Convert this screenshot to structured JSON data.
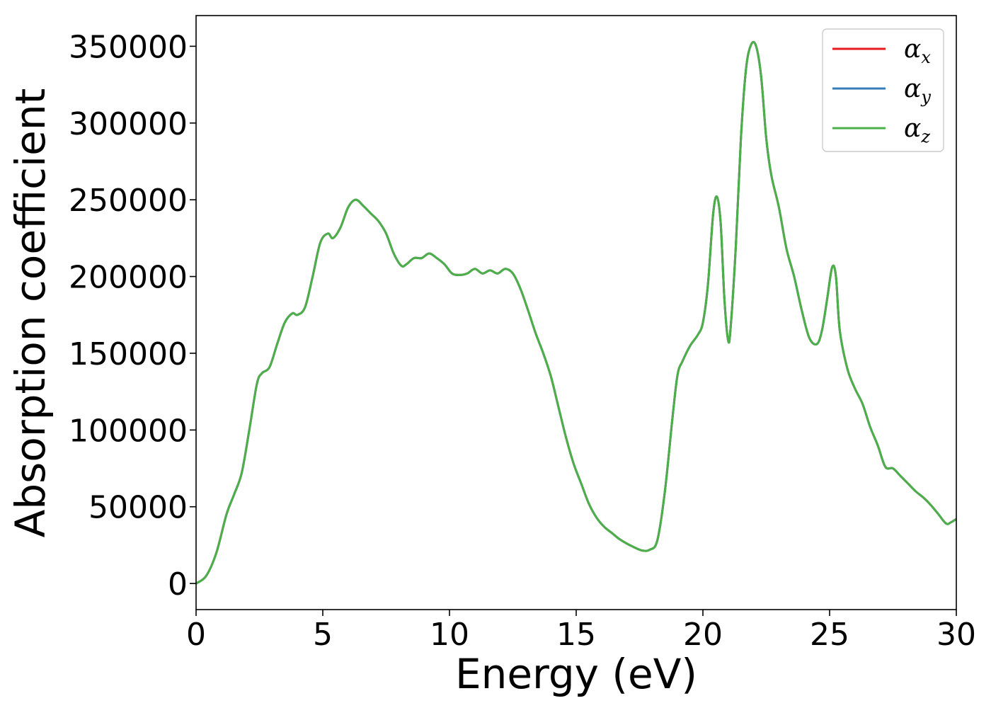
{
  "chart_data": {
    "type": "line",
    "title": "",
    "xlabel": "Energy (eV)",
    "ylabel": "Absorption coefficient",
    "xlim": [
      0,
      30
    ],
    "ylim": [
      -17000,
      370000
    ],
    "xticks": [
      0,
      5,
      10,
      15,
      20,
      25,
      30
    ],
    "xtick_labels": [
      "0",
      "5",
      "10",
      "15",
      "20",
      "25",
      "30"
    ],
    "yticks": [
      0,
      50000,
      100000,
      150000,
      200000,
      250000,
      300000,
      350000
    ],
    "ytick_labels": [
      "0",
      "50000",
      "100000",
      "150000",
      "200000",
      "250000",
      "300000",
      "350000"
    ],
    "grid": false,
    "legend_position": "top-right",
    "x": [
      0,
      0.4,
      0.8,
      1.2,
      1.5,
      1.8,
      2.1,
      2.4,
      2.6,
      2.9,
      3.2,
      3.5,
      3.8,
      4.0,
      4.3,
      4.6,
      4.9,
      5.2,
      5.4,
      5.7,
      6.0,
      6.3,
      6.6,
      6.9,
      7.2,
      7.5,
      7.8,
      8.1,
      8.3,
      8.6,
      8.9,
      9.2,
      9.5,
      9.8,
      10.1,
      10.4,
      10.7,
      11.0,
      11.3,
      11.6,
      11.9,
      12.2,
      12.5,
      12.8,
      13.1,
      13.4,
      13.7,
      14.0,
      14.3,
      14.6,
      14.9,
      15.2,
      15.5,
      15.8,
      16.1,
      16.4,
      16.7,
      17.0,
      17.3,
      17.6,
      17.9,
      18.2,
      18.5,
      18.8,
      19.0,
      19.2,
      19.5,
      19.8,
      20.0,
      20.2,
      20.4,
      20.55,
      20.7,
      20.85,
      21.0,
      21.1,
      21.3,
      21.5,
      21.7,
      21.9,
      22.1,
      22.3,
      22.5,
      22.7,
      23.0,
      23.3,
      23.6,
      23.9,
      24.2,
      24.5,
      24.7,
      24.9,
      25.1,
      25.25,
      25.4,
      25.7,
      26.0,
      26.3,
      26.6,
      26.9,
      27.2,
      27.5,
      27.8,
      28.1,
      28.4,
      28.7,
      29.0,
      29.3,
      29.6,
      29.8,
      30.0
    ],
    "series": [
      {
        "name": "α_x",
        "color": "#e41a1c",
        "values": [
          0,
          5000,
          20000,
          45000,
          58000,
          72000,
          100000,
          130000,
          137000,
          141000,
          156000,
          170000,
          176000,
          175000,
          180000,
          200000,
          222000,
          228000,
          225000,
          232000,
          245000,
          250000,
          246000,
          241000,
          236000,
          228000,
          215000,
          207000,
          208000,
          212000,
          212000,
          215000,
          212000,
          208000,
          202000,
          201000,
          202000,
          205000,
          202000,
          204000,
          202000,
          205000,
          202000,
          192000,
          178000,
          163000,
          150000,
          135000,
          115000,
          95000,
          78000,
          65000,
          52000,
          43000,
          37000,
          33000,
          29000,
          26000,
          23500,
          21500,
          22000,
          28000,
          60000,
          108000,
          136000,
          145000,
          155000,
          162000,
          170000,
          195000,
          240000,
          252000,
          235000,
          185000,
          158000,
          168000,
          220000,
          290000,
          335000,
          351000,
          350000,
          330000,
          290000,
          266000,
          245000,
          218000,
          200000,
          178000,
          160000,
          156000,
          165000,
          185000,
          206000,
          200000,
          165000,
          140000,
          127000,
          117000,
          102000,
          90000,
          76000,
          75000,
          70000,
          65000,
          60000,
          56000,
          51000,
          45000,
          39000,
          40000,
          42000
        ]
      },
      {
        "name": "α_y",
        "color": "#377eb8",
        "values": [
          0,
          5000,
          20000,
          45000,
          58000,
          72000,
          100000,
          130000,
          137000,
          141000,
          156000,
          170000,
          176000,
          175000,
          180000,
          200000,
          222000,
          228000,
          225000,
          232000,
          245000,
          250000,
          246000,
          241000,
          236000,
          228000,
          215000,
          207000,
          208000,
          212000,
          212000,
          215000,
          212000,
          208000,
          202000,
          201000,
          202000,
          205000,
          202000,
          204000,
          202000,
          205000,
          202000,
          192000,
          178000,
          163000,
          150000,
          135000,
          115000,
          95000,
          78000,
          65000,
          52000,
          43000,
          37000,
          33000,
          29000,
          26000,
          23500,
          21500,
          22000,
          28000,
          60000,
          108000,
          136000,
          145000,
          155000,
          162000,
          170000,
          195000,
          240000,
          252000,
          235000,
          185000,
          158000,
          168000,
          220000,
          290000,
          335000,
          351000,
          350000,
          330000,
          290000,
          266000,
          245000,
          218000,
          200000,
          178000,
          160000,
          156000,
          165000,
          185000,
          206000,
          200000,
          165000,
          140000,
          127000,
          117000,
          102000,
          90000,
          76000,
          75000,
          70000,
          65000,
          60000,
          56000,
          51000,
          45000,
          39000,
          40000,
          42000
        ]
      },
      {
        "name": "α_z",
        "color": "#4daf4a",
        "values": [
          0,
          5000,
          20000,
          45000,
          58000,
          72000,
          100000,
          130000,
          137000,
          141000,
          156000,
          170000,
          176000,
          175000,
          180000,
          200000,
          222000,
          228000,
          225000,
          232000,
          245000,
          250000,
          246000,
          241000,
          236000,
          228000,
          215000,
          207000,
          208000,
          212000,
          212000,
          215000,
          212000,
          208000,
          202000,
          201000,
          202000,
          205000,
          202000,
          204000,
          202000,
          205000,
          202000,
          192000,
          178000,
          163000,
          150000,
          135000,
          115000,
          95000,
          78000,
          65000,
          52000,
          43000,
          37000,
          33000,
          29000,
          26000,
          23500,
          21500,
          22000,
          28000,
          60000,
          108000,
          136000,
          145000,
          155000,
          162000,
          170000,
          195000,
          240000,
          252000,
          235000,
          185000,
          158000,
          168000,
          220000,
          290000,
          335000,
          351000,
          350000,
          330000,
          290000,
          266000,
          245000,
          218000,
          200000,
          178000,
          160000,
          156000,
          165000,
          185000,
          206000,
          200000,
          165000,
          140000,
          127000,
          117000,
          102000,
          90000,
          76000,
          75000,
          70000,
          65000,
          60000,
          56000,
          51000,
          45000,
          39000,
          40000,
          42000
        ]
      }
    ],
    "legend": [
      {
        "symbol": "α",
        "sub": "x",
        "color": "#e41a1c"
      },
      {
        "symbol": "α",
        "sub": "y",
        "color": "#377eb8"
      },
      {
        "symbol": "α",
        "sub": "z",
        "color": "#4daf4a"
      }
    ]
  }
}
